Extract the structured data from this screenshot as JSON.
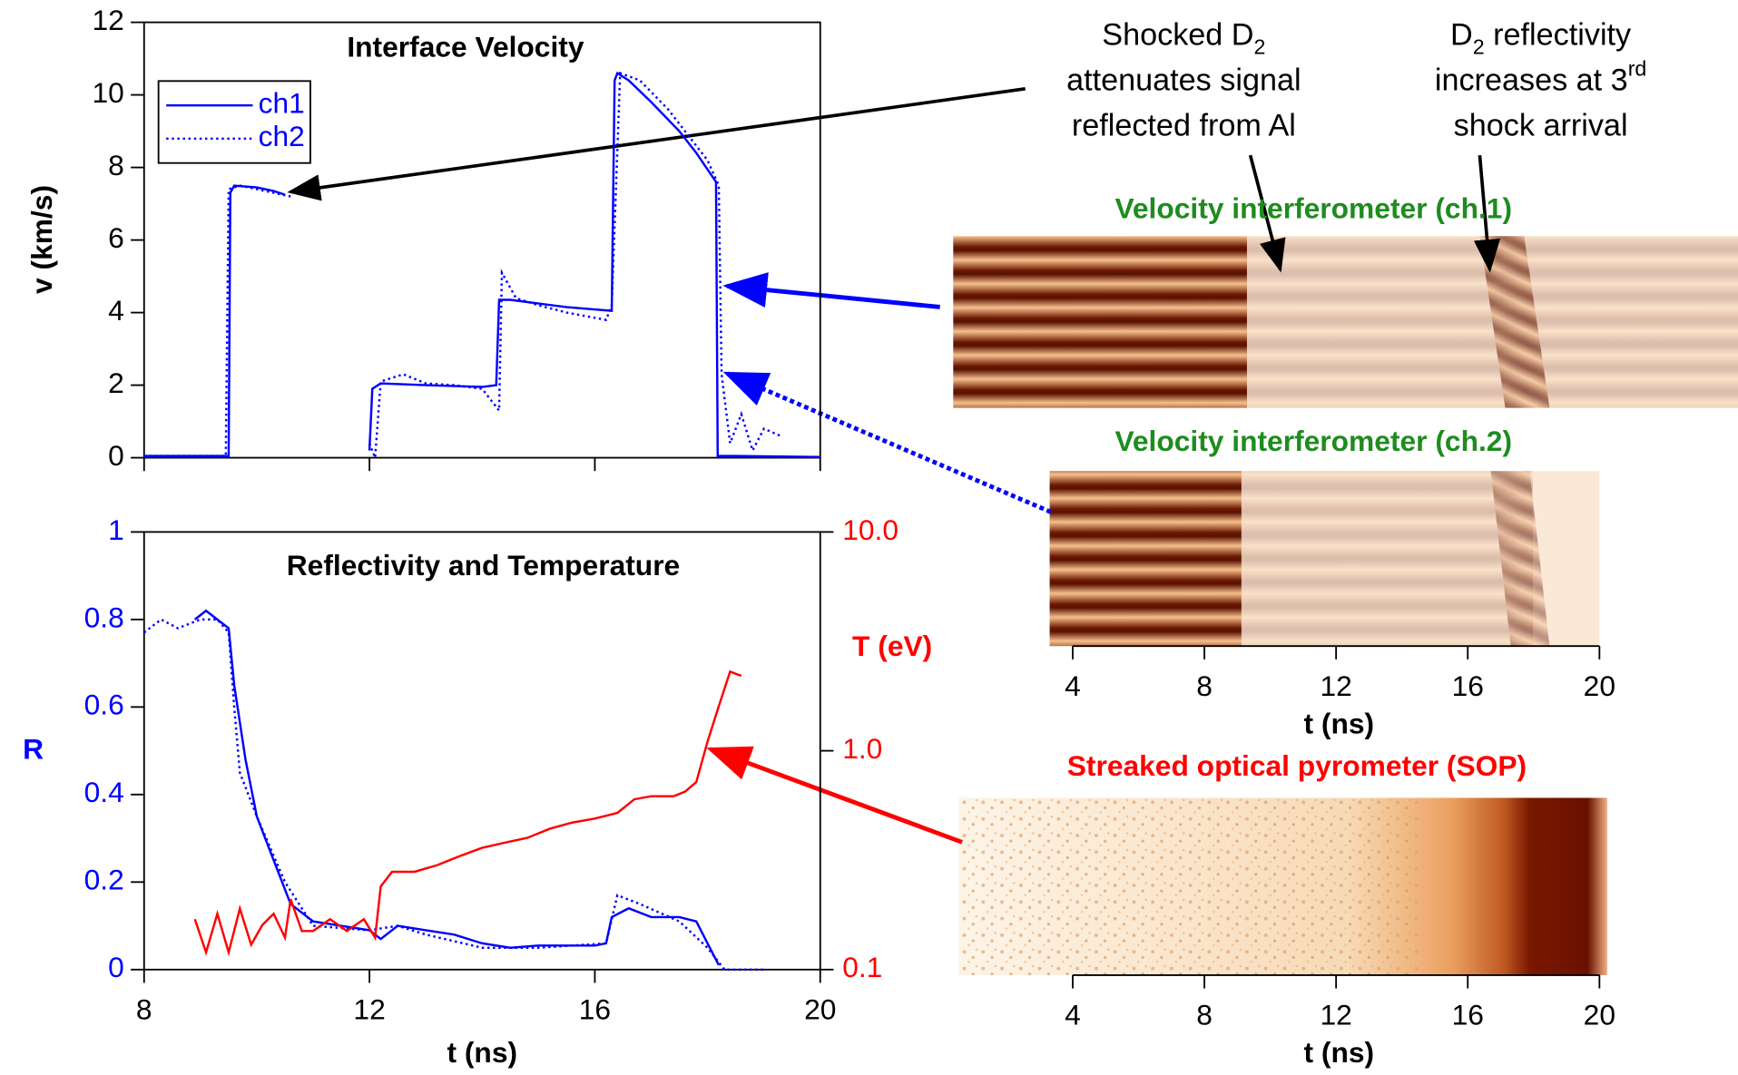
{
  "chart_data": [
    {
      "type": "line",
      "title": "Interface Velocity",
      "ylabel": "v (km/s)",
      "xlim": [
        8,
        20
      ],
      "xticks": [
        8,
        12,
        16,
        20
      ],
      "ylim": [
        0,
        12
      ],
      "yticks": [
        0,
        2,
        4,
        6,
        8,
        10,
        12
      ],
      "legend": "upper left",
      "series": [
        {
          "name": "ch1",
          "color": "#0000ff",
          "style": "solid",
          "x": [
            8,
            9.5,
            9.53,
            9.6,
            10,
            10.3,
            10.5,
            11,
            12.0,
            12.05,
            12.2,
            13,
            14,
            14.25,
            14.3,
            14.5,
            15,
            15.5,
            16.3,
            16.35,
            16.4,
            16.6,
            17,
            17.5,
            17.8,
            18.15,
            18.18,
            18.5,
            20
          ],
          "values": [
            0.05,
            0.05,
            7.3,
            7.5,
            7.45,
            7.35,
            7.25,
            null,
            0.2,
            1.9,
            2.05,
            2.0,
            1.95,
            2.0,
            4.35,
            4.35,
            4.25,
            4.15,
            4.05,
            10.4,
            10.6,
            10.4,
            9.8,
            9.0,
            8.4,
            7.6,
            0.05,
            0.05,
            0.02
          ]
        },
        {
          "name": "ch2",
          "color": "#0000ff",
          "style": "dotted",
          "x": [
            8,
            9.45,
            9.5,
            9.7,
            10,
            10.3,
            10.6,
            11,
            12.0,
            12.1,
            12.2,
            12.6,
            13,
            13.5,
            14,
            14.3,
            14.35,
            14.6,
            15,
            15.5,
            16.2,
            16.3,
            16.45,
            16.8,
            17.3,
            18.0,
            18.2,
            18.25,
            18.4,
            18.6,
            18.8,
            19.0,
            19.3
          ],
          "values": [
            0.05,
            0.05,
            7.4,
            7.5,
            7.4,
            7.3,
            7.2,
            null,
            0.4,
            0,
            2.1,
            2.3,
            2.05,
            2.0,
            1.9,
            1.3,
            5.1,
            4.4,
            4.2,
            4.0,
            3.8,
            4.2,
            10.6,
            10.4,
            9.6,
            8.2,
            7.5,
            2.3,
            0.4,
            1.2,
            0.2,
            0.8,
            0.6
          ]
        }
      ]
    },
    {
      "type": "line",
      "title": "Reflectivity and Temperature",
      "xlabel": "t (ns)",
      "ylabel": "R",
      "y2label": "T (eV)",
      "ycolor": "#0000ff",
      "y2color": "#ff0000",
      "xlim": [
        8,
        20
      ],
      "xticks": [
        8,
        12,
        16,
        20
      ],
      "ylim": [
        0,
        1
      ],
      "yticks": [
        0,
        0.2,
        0.4,
        0.6,
        0.8,
        1
      ],
      "y2lim": [
        0.1,
        10
      ],
      "y2log": true,
      "y2ticks": [
        0.1,
        {
          "value": 1,
          "label": "1.0"
        },
        {
          "value": 10,
          "label": "10.0"
        }
      ],
      "series": [
        {
          "color": "#0000ff",
          "style": "solid",
          "x": [
            8.9,
            9.1,
            9.3,
            9.5,
            9.6,
            9.8,
            10,
            10.3,
            10.6,
            11,
            11.5,
            12,
            12.2,
            12.5,
            13,
            13.5,
            14,
            14.5,
            15,
            16,
            16.2,
            16.3,
            16.6,
            17,
            17.5,
            17.8,
            18,
            18.2
          ],
          "values": [
            0.8,
            0.82,
            0.8,
            0.78,
            0.65,
            0.48,
            0.35,
            0.25,
            0.15,
            0.11,
            0.1,
            0.09,
            0.07,
            0.1,
            0.09,
            0.08,
            0.06,
            0.05,
            0.055,
            0.055,
            0.06,
            0.12,
            0.14,
            0.12,
            0.12,
            0.11,
            0.06,
            0.01
          ]
        },
        {
          "color": "#0000ff",
          "style": "dotted",
          "x": [
            8,
            8.3,
            8.6,
            9,
            9.3,
            9.5,
            9.6,
            9.7,
            10,
            10.5,
            11,
            12,
            12.5,
            13,
            14,
            15,
            16.2,
            16.4,
            16.8,
            17.5,
            18,
            18.3,
            19
          ],
          "values": [
            0.77,
            0.8,
            0.78,
            0.8,
            0.8,
            0.77,
            0.6,
            0.45,
            0.35,
            0.2,
            0.1,
            0.09,
            0.1,
            0.08,
            0.05,
            0.05,
            0.06,
            0.17,
            0.15,
            0.11,
            0.05,
            0.0,
            0.0
          ]
        },
        {
          "color": "#ff0000",
          "style": "solid",
          "axis": "y2",
          "x": [
            8.9,
            9.1,
            9.3,
            9.5,
            9.7,
            9.9,
            10.1,
            10.3,
            10.5,
            10.6,
            10.8,
            11.0,
            11.3,
            11.6,
            11.9,
            12.1,
            12.2,
            12.4,
            12.8,
            13.2,
            13.6,
            14.0,
            14.4,
            14.8,
            15.2,
            15.6,
            16.0,
            16.4,
            16.7,
            17.0,
            17.4,
            17.6,
            17.8,
            18.0,
            18.2,
            18.4,
            18.6
          ],
          "values": [
            0.17,
            0.12,
            0.18,
            0.12,
            0.19,
            0.13,
            0.16,
            0.18,
            0.14,
            0.21,
            0.15,
            0.15,
            0.17,
            0.15,
            0.17,
            0.14,
            0.24,
            0.28,
            0.28,
            0.3,
            0.33,
            0.36,
            0.38,
            0.4,
            0.44,
            0.47,
            0.49,
            0.52,
            0.6,
            0.62,
            0.62,
            0.65,
            0.72,
            1.1,
            1.6,
            2.3,
            2.2
          ]
        }
      ]
    },
    {
      "type": "image",
      "title": "Velocity interferometer (ch.1)",
      "title_color": "#1e8c1e"
    },
    {
      "type": "image",
      "title": "Velocity interferometer (ch.2)",
      "title_color": "#1e8c1e",
      "xlabel": "t (ns)",
      "xlim": [
        3.3,
        20
      ],
      "xticks": [
        4,
        8,
        12,
        16,
        20
      ]
    },
    {
      "type": "image",
      "title": "Streaked optical pyrometer (SOP)",
      "title_color": "#ff0000",
      "xlabel": "t (ns)",
      "xlim": [
        3.3,
        20
      ],
      "xticks": [
        4,
        8,
        12,
        16,
        20
      ]
    }
  ],
  "annotations": [
    {
      "line1": "Shocked D",
      "line1_sub": "2",
      "line2": "attenuates signal",
      "line3": "reflected from Al"
    },
    {
      "line1": "D",
      "line1_sub": "2",
      "line1_end": " reflectivity",
      "line2": "increases at 3",
      "line2_sup": "rd",
      "line3": "shock arrival"
    }
  ]
}
